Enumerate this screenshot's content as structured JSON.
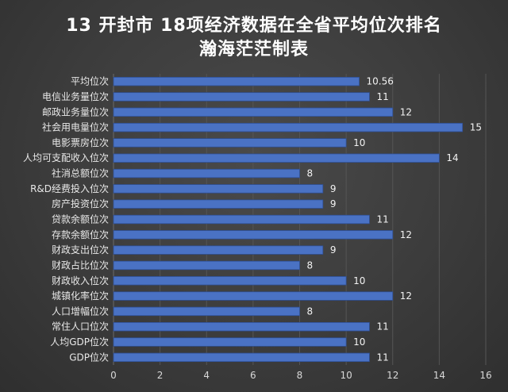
{
  "chart_data": {
    "type": "bar",
    "orientation": "horizontal",
    "title": "13 开封市 18项经济数据在全省平均位次排名",
    "subtitle": "瀚海茫茫制表",
    "categories": [
      "平均位次",
      "电信业务量位次",
      "邮政业务量位次",
      "社会用电量位次",
      "电影票房位次",
      "人均可支配收入位次",
      "社消总额位次",
      "R&D经费投入位次",
      "房产投资位次",
      "贷款余额位次",
      "存款余额位次",
      "财政支出位次",
      "财政占比位次",
      "财政收入位次",
      "城镇化率位次",
      "人口增幅位次",
      "常住人口位次",
      "人均GDP位次",
      "GDP位次"
    ],
    "values": [
      10.56,
      11,
      12,
      15,
      10,
      14,
      8,
      9,
      9,
      11,
      12,
      9,
      8,
      10,
      12,
      8,
      11,
      10,
      11
    ],
    "value_labels": [
      "10.56",
      "11",
      "12",
      "15",
      "10",
      "14",
      "8",
      "9",
      "9",
      "11",
      "12",
      "9",
      "8",
      "10",
      "12",
      "8",
      "11",
      "10",
      "11"
    ],
    "xlim": [
      0,
      16
    ],
    "x_ticks": [
      "0",
      "2",
      "4",
      "6",
      "8",
      "10",
      "12",
      "14",
      "16"
    ],
    "xlabel": "",
    "ylabel": "",
    "grid": "vertical",
    "bar_color": "#4a72c4",
    "bar_edge_color": "#2e4f94",
    "grid_color": "#555555",
    "label_color": "#e8e8e8"
  }
}
